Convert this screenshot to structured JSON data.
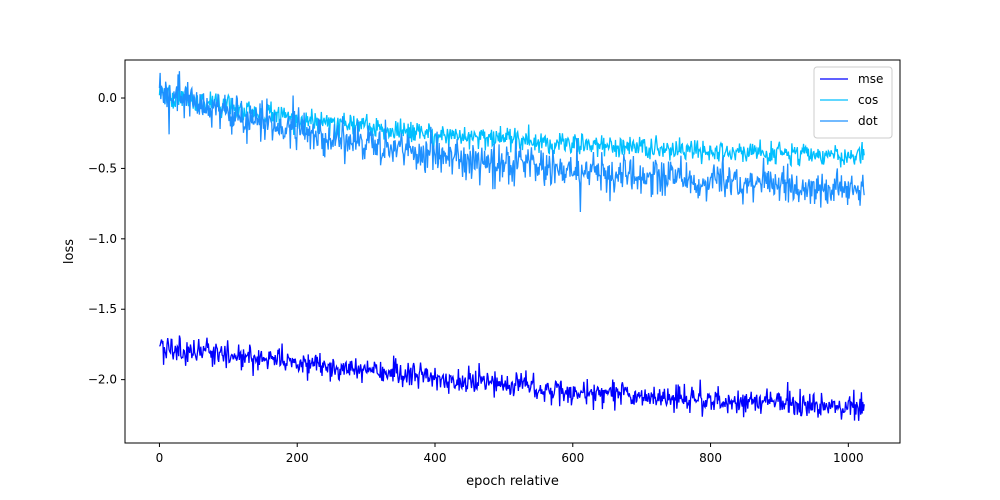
{
  "chart_data": {
    "type": "line",
    "title": "",
    "xlabel": "epoch relative",
    "ylabel": "loss",
    "xlim": [
      -50,
      1075
    ],
    "ylim": [
      -2.45,
      0.27
    ],
    "xticks": [
      0,
      200,
      400,
      600,
      800,
      1000
    ],
    "yticks": [
      0.0,
      -0.5,
      -1.0,
      -1.5,
      -2.0
    ],
    "grid": false,
    "legend_position": "top-right",
    "x_range": [
      0,
      1023
    ],
    "noise_seed": 20240521,
    "series": [
      {
        "name": "mse",
        "color": "#0000ff",
        "trend": [
          [
            0,
            -1.76
          ],
          [
            200,
            -1.88
          ],
          [
            400,
            -1.99
          ],
          [
            600,
            -2.09
          ],
          [
            800,
            -2.15
          ],
          [
            1023,
            -2.2
          ]
        ],
        "noise": 0.045
      },
      {
        "name": "cos",
        "color": "#00bfff",
        "trend": [
          [
            0,
            0.03
          ],
          [
            200,
            -0.15
          ],
          [
            400,
            -0.26
          ],
          [
            600,
            -0.33
          ],
          [
            800,
            -0.38
          ],
          [
            1023,
            -0.41
          ]
        ],
        "noise": 0.04
      },
      {
        "name": "dot",
        "color": "#1e90ff",
        "trend": [
          [
            0,
            0.03
          ],
          [
            200,
            -0.25
          ],
          [
            400,
            -0.4
          ],
          [
            600,
            -0.51
          ],
          [
            800,
            -0.6
          ],
          [
            1023,
            -0.66
          ]
        ],
        "noise": 0.07
      }
    ]
  }
}
